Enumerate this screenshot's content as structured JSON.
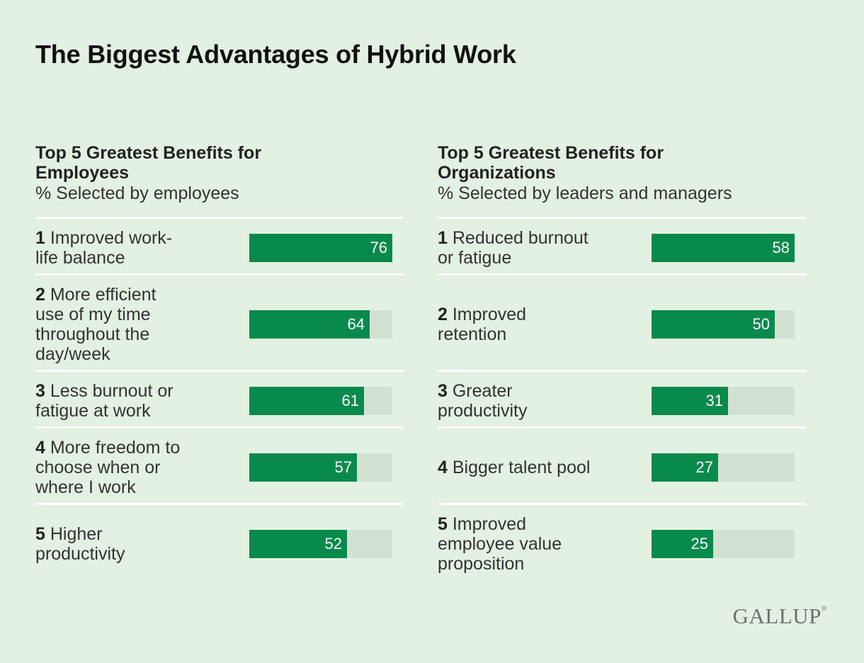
{
  "title": "The Biggest Advantages of Hybrid Work",
  "logo": "GALLUP",
  "chart_data": [
    {
      "type": "bar",
      "title": "Top 5 Greatest Benefits for Employees",
      "subtitle": "% Selected by employees",
      "xlim": [
        0,
        76
      ],
      "items": [
        {
          "rank": "1",
          "label": "Improved work-life balance",
          "lines": [
            "Improved work-",
            "life balance"
          ],
          "value": 76
        },
        {
          "rank": "2",
          "label": "More efficient use of my time throughout the day/week",
          "lines": [
            "More efficient",
            "use of my time",
            "throughout the",
            "day/week"
          ],
          "value": 64
        },
        {
          "rank": "3",
          "label": "Less burnout or fatigue at work",
          "lines": [
            "Less burnout or",
            "fatigue at work"
          ],
          "value": 61
        },
        {
          "rank": "4",
          "label": "More freedom to choose when or where I work",
          "lines": [
            "More freedom to",
            "choose when or",
            "where I work"
          ],
          "value": 57
        },
        {
          "rank": "5",
          "label": "Higher productivity",
          "lines": [
            "Higher",
            "productivity"
          ],
          "value": 52
        }
      ]
    },
    {
      "type": "bar",
      "title": "Top 5 Greatest Benefits for Organizations",
      "subtitle": "% Selected by leaders and managers",
      "xlim": [
        0,
        58
      ],
      "items": [
        {
          "rank": "1",
          "label": "Reduced burnout or fatigue",
          "lines": [
            "Reduced burnout",
            "or fatigue"
          ],
          "value": 58
        },
        {
          "rank": "2",
          "label": "Improved retention",
          "lines": [
            "Improved",
            "retention"
          ],
          "value": 50
        },
        {
          "rank": "3",
          "label": "Greater productivity",
          "lines": [
            "Greater",
            "productivity"
          ],
          "value": 31
        },
        {
          "rank": "4",
          "label": "Bigger talent pool",
          "lines": [
            "Bigger talent pool"
          ],
          "value": 27
        },
        {
          "rank": "5",
          "label": "Improved employee value proposition",
          "lines": [
            "Improved",
            "employee value",
            "proposition"
          ],
          "value": 25
        }
      ]
    }
  ]
}
